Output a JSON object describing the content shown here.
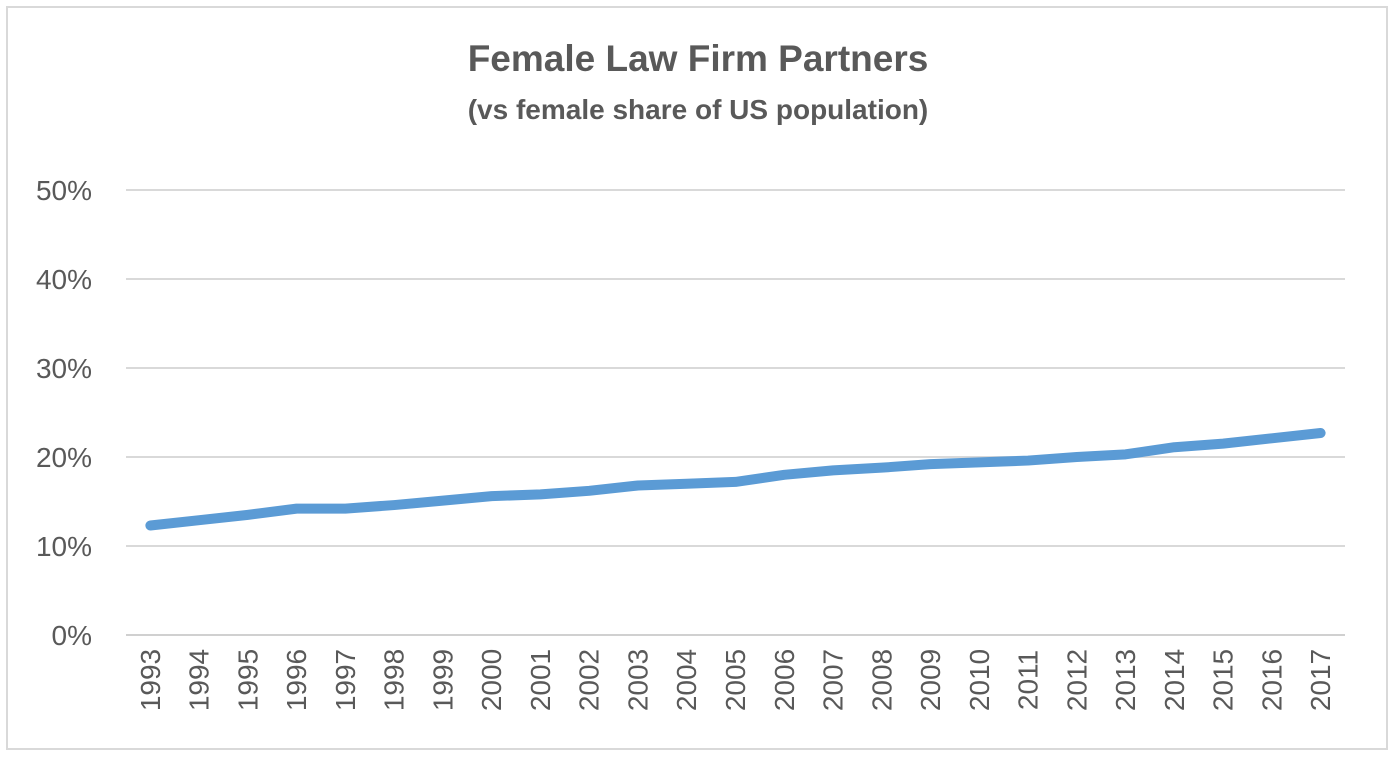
{
  "chart_data": {
    "type": "line",
    "title": "Female Law Firm Partners",
    "subtitle": "(vs female share of US population)",
    "xlabel": "",
    "ylabel": "",
    "categories": [
      "1993",
      "1994",
      "1995",
      "1996",
      "1997",
      "1998",
      "1999",
      "2000",
      "2001",
      "2002",
      "2003",
      "2004",
      "2005",
      "2006",
      "2007",
      "2008",
      "2009",
      "2010",
      "2011",
      "2012",
      "2013",
      "2014",
      "2015",
      "2016",
      "2017"
    ],
    "series": [
      {
        "values": [
          12.3,
          12.9,
          13.5,
          14.2,
          14.2,
          14.6,
          15.1,
          15.6,
          15.8,
          16.2,
          16.8,
          17.0,
          17.2,
          18.0,
          18.5,
          18.8,
          19.2,
          19.4,
          19.6,
          20.0,
          20.3,
          21.1,
          21.5,
          22.1,
          22.7
        ],
        "color": "#5b9bd5"
      }
    ],
    "yticks": [
      "0%",
      "10%",
      "20%",
      "30%",
      "40%",
      "50%"
    ],
    "ylim": [
      0,
      50
    ],
    "grid": true,
    "legend": "none"
  }
}
